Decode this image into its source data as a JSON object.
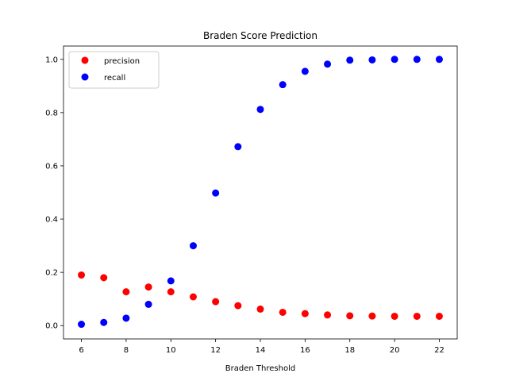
{
  "chart_data": {
    "type": "scatter",
    "title": "Braden Score Prediction",
    "xlabel": "Braden Threshold",
    "ylabel": "",
    "xlim": [
      5.2,
      22.8
    ],
    "ylim": [
      -0.05,
      1.05
    ],
    "xticks": [
      6,
      8,
      10,
      12,
      14,
      16,
      18,
      20,
      22
    ],
    "yticks": [
      0.0,
      0.2,
      0.4,
      0.6,
      0.8,
      1.0
    ],
    "legend_position": "top-left",
    "grid": false,
    "x": [
      6,
      7,
      8,
      9,
      10,
      11,
      12,
      13,
      14,
      15,
      16,
      17,
      18,
      19,
      20,
      21,
      22
    ],
    "series": [
      {
        "name": "precision",
        "color": "#ff0000",
        "values": [
          0.19,
          0.18,
          0.127,
          0.145,
          0.127,
          0.108,
          0.09,
          0.075,
          0.062,
          0.05,
          0.045,
          0.04,
          0.037,
          0.036,
          0.035,
          0.035,
          0.035
        ]
      },
      {
        "name": "recall",
        "color": "#0000ff",
        "values": [
          0.005,
          0.012,
          0.028,
          0.08,
          0.168,
          0.3,
          0.498,
          0.672,
          0.812,
          0.905,
          0.955,
          0.982,
          0.997,
          0.998,
          1.0,
          1.0,
          1.0
        ]
      }
    ]
  }
}
